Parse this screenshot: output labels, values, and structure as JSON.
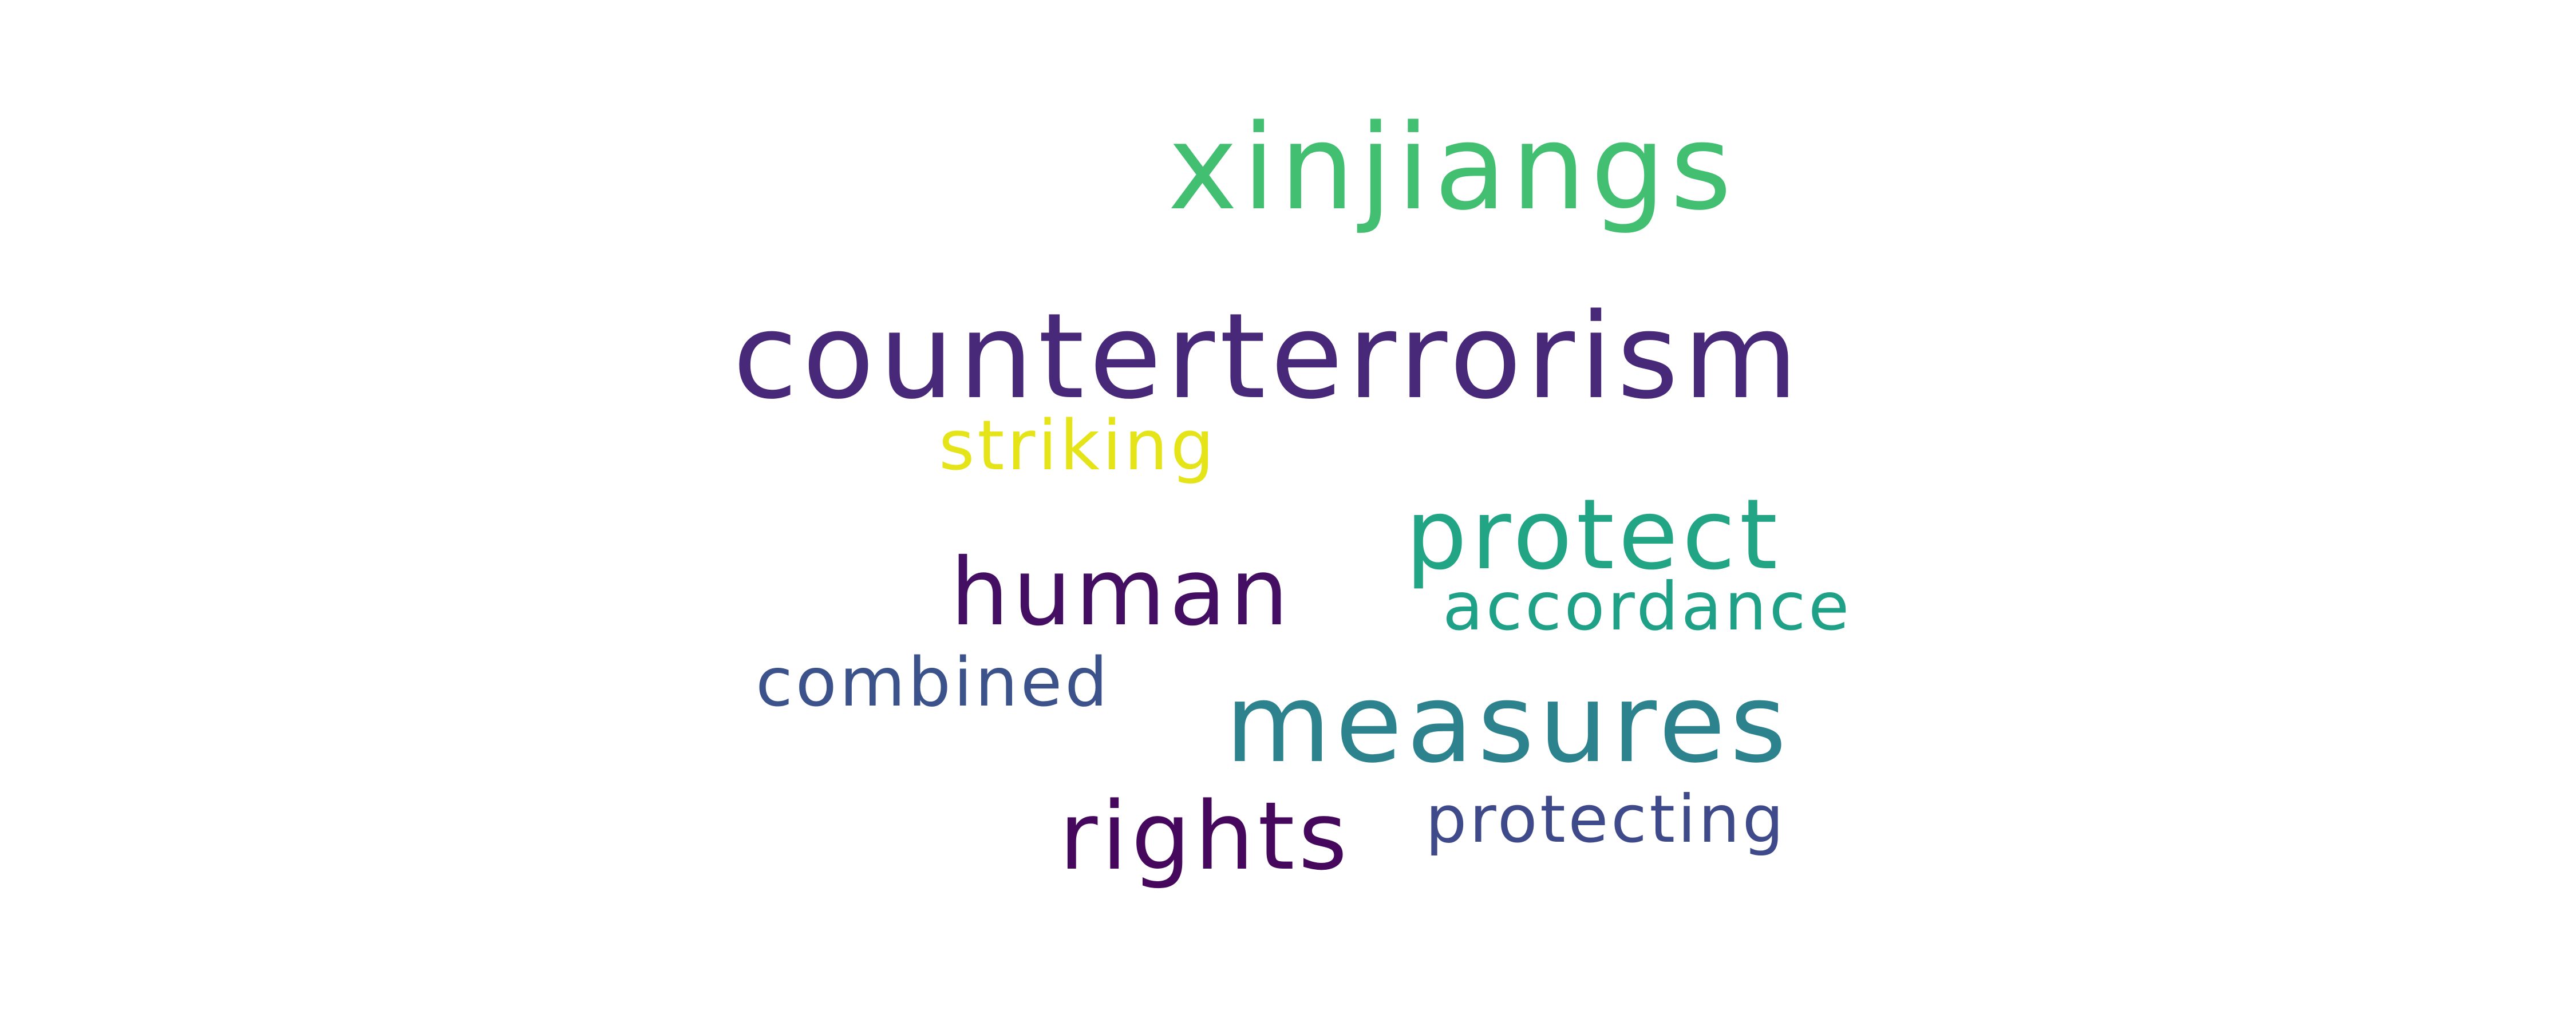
{
  "words": [
    {
      "text": "xinjiangs",
      "color": "#43bf71"
    },
    {
      "text": "counterterrorism",
      "color": "#482878"
    },
    {
      "text": "striking",
      "color": "#e5e419"
    },
    {
      "text": "protect",
      "color": "#21a585"
    },
    {
      "text": "human",
      "color": "#440f62"
    },
    {
      "text": "accordance",
      "color": "#1fa187"
    },
    {
      "text": "combined",
      "color": "#3b528b"
    },
    {
      "text": "measures",
      "color": "#2c838e"
    },
    {
      "text": "rights",
      "color": "#46085c"
    },
    {
      "text": "protecting",
      "color": "#3f4a8a"
    }
  ]
}
